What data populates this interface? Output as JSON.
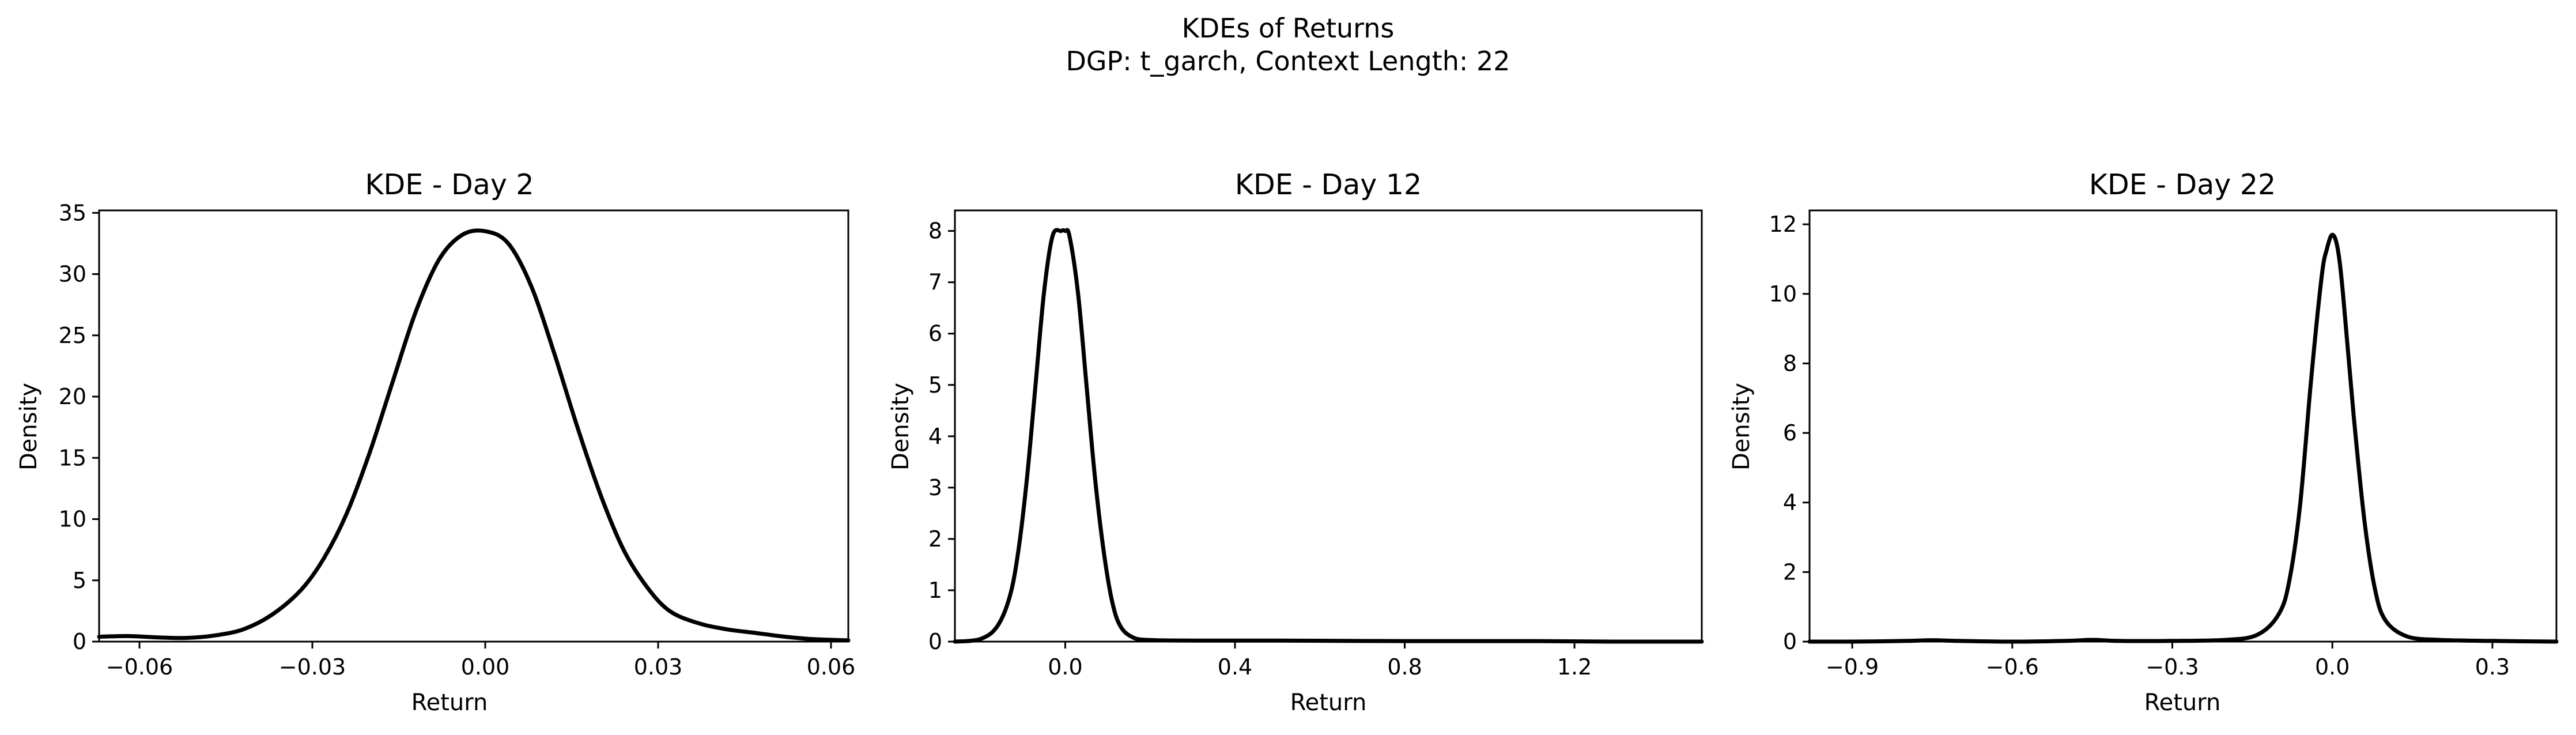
{
  "figure": {
    "title_line1": "KDEs of Returns",
    "title_line2": "DGP: t_garch, Context Length: 22"
  },
  "chart_data": [
    {
      "type": "line",
      "title": "KDE - Day 2",
      "xlabel": "Return",
      "ylabel": "Density",
      "xlim": [
        -0.067,
        0.063
      ],
      "ylim": [
        0,
        35.2
      ],
      "xticks": [
        -0.06,
        -0.03,
        0.0,
        0.03,
        0.06
      ],
      "xtick_labels": [
        "−0.06",
        "−0.03",
        "0.00",
        "0.03",
        "0.06"
      ],
      "yticks": [
        0,
        5,
        10,
        15,
        20,
        25,
        30,
        35
      ],
      "ytick_labels": [
        "0",
        "5",
        "10",
        "15",
        "20",
        "25",
        "30",
        "35"
      ],
      "grid": false,
      "color": "#000000",
      "x": [
        -0.067,
        -0.062,
        -0.057,
        -0.052,
        -0.047,
        -0.042,
        -0.037,
        -0.032,
        -0.028,
        -0.024,
        -0.02,
        -0.016,
        -0.012,
        -0.008,
        -0.004,
        0.0,
        0.004,
        0.008,
        0.012,
        0.016,
        0.02,
        0.024,
        0.028,
        0.032,
        0.037,
        0.042,
        0.047,
        0.052,
        0.057,
        0.063
      ],
      "y": [
        0.4,
        0.45,
        0.35,
        0.3,
        0.5,
        1.0,
        2.2,
        4.2,
        6.8,
        10.5,
        15.5,
        21.3,
        27.0,
        31.2,
        33.2,
        33.5,
        32.5,
        29.0,
        23.5,
        17.5,
        12.0,
        7.5,
        4.5,
        2.5,
        1.5,
        1.0,
        0.7,
        0.4,
        0.2,
        0.1
      ]
    },
    {
      "type": "line",
      "title": "KDE - Day 12",
      "xlabel": "Return",
      "ylabel": "Density",
      "xlim": [
        -0.26,
        1.5
      ],
      "ylim": [
        0,
        8.4
      ],
      "xticks": [
        0.0,
        0.4,
        0.8,
        1.2
      ],
      "xtick_labels": [
        "0.0",
        "0.4",
        "0.8",
        "1.2"
      ],
      "yticks": [
        0,
        1,
        2,
        3,
        4,
        5,
        6,
        7,
        8
      ],
      "ytick_labels": [
        "0",
        "1",
        "2",
        "3",
        "4",
        "5",
        "6",
        "7",
        "8"
      ],
      "grid": false,
      "color": "#000000",
      "x": [
        -0.26,
        -0.2,
        -0.16,
        -0.13,
        -0.11,
        -0.09,
        -0.07,
        -0.05,
        -0.03,
        -0.01,
        0.0,
        0.01,
        0.03,
        0.05,
        0.07,
        0.09,
        0.11,
        0.13,
        0.16,
        0.2,
        0.3,
        0.5,
        0.8,
        1.1,
        1.3,
        1.5
      ],
      "y": [
        0.0,
        0.05,
        0.3,
        0.9,
        1.8,
        3.2,
        5.0,
        6.8,
        7.9,
        8.0,
        8.0,
        7.9,
        6.8,
        5.0,
        3.2,
        1.8,
        0.8,
        0.3,
        0.08,
        0.03,
        0.02,
        0.02,
        0.01,
        0.01,
        0.0,
        0.0
      ]
    },
    {
      "type": "line",
      "title": "KDE - Day 22",
      "xlabel": "Return",
      "ylabel": "Density",
      "xlim": [
        -0.98,
        0.42
      ],
      "ylim": [
        0,
        12.4
      ],
      "xticks": [
        -0.9,
        -0.6,
        -0.3,
        0.0,
        0.3
      ],
      "xtick_labels": [
        "−0.9",
        "−0.6",
        "−0.3",
        "0.0",
        "0.3"
      ],
      "yticks": [
        0,
        2,
        4,
        6,
        8,
        10,
        12
      ],
      "ytick_labels": [
        "0",
        "2",
        "4",
        "6",
        "8",
        "10",
        "12"
      ],
      "grid": false,
      "color": "#000000",
      "x": [
        -0.98,
        -0.9,
        -0.8,
        -0.75,
        -0.7,
        -0.6,
        -0.5,
        -0.45,
        -0.4,
        -0.3,
        -0.2,
        -0.14,
        -0.1,
        -0.08,
        -0.06,
        -0.04,
        -0.02,
        -0.01,
        0.0,
        0.01,
        0.02,
        0.04,
        0.06,
        0.08,
        0.1,
        0.14,
        0.2,
        0.3,
        0.42
      ],
      "y": [
        0.0,
        0.0,
        0.02,
        0.04,
        0.02,
        0.0,
        0.02,
        0.05,
        0.02,
        0.02,
        0.05,
        0.2,
        0.8,
        1.8,
        4.0,
        7.5,
        10.5,
        11.3,
        11.7,
        11.3,
        10.0,
        6.5,
        3.5,
        1.5,
        0.6,
        0.15,
        0.05,
        0.02,
        0.0
      ]
    }
  ]
}
